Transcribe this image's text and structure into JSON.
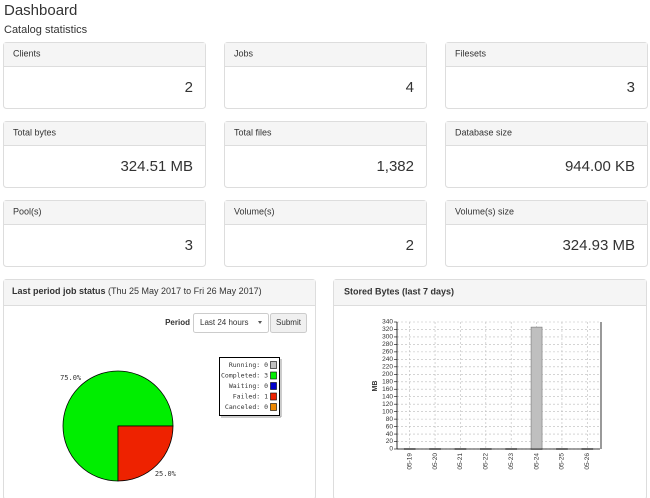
{
  "header": {
    "title": "Dashboard",
    "subtitle": "Catalog statistics"
  },
  "stats": [
    {
      "label": "Clients",
      "value": "2"
    },
    {
      "label": "Jobs",
      "value": "4"
    },
    {
      "label": "Filesets",
      "value": "3"
    },
    {
      "label": "Total bytes",
      "value": "324.51 MB"
    },
    {
      "label": "Total files",
      "value": "1,382"
    },
    {
      "label": "Database size",
      "value": "944.00 KB"
    },
    {
      "label": "Pool(s)",
      "value": "3"
    },
    {
      "label": "Volume(s)",
      "value": "2"
    },
    {
      "label": "Volume(s) size",
      "value": "324.93 MB"
    }
  ],
  "job_status": {
    "title": "Last period job status",
    "range": "(Thu 25 May 2017 to Fri 26 May 2017)",
    "period_label": "Period",
    "period_option": "Last 24 hours",
    "submit": "Submit",
    "chart_data": {
      "type": "pie",
      "categories": [
        "Running:",
        "Completed:",
        "Waiting:",
        "Failed:",
        "Canceled:"
      ],
      "counts": [
        0,
        3,
        0,
        1,
        0
      ],
      "values": [
        0,
        75,
        0,
        25,
        0
      ],
      "value_labels": [
        null,
        "75.0%",
        null,
        "25.0%",
        null
      ],
      "colors": [
        "#c0c0c0",
        "#00ee00",
        "#0000cc",
        "#ee2200",
        "#ee8800"
      ]
    }
  },
  "stored_bytes": {
    "title": "Stored Bytes (last 7 days)",
    "chart_data": {
      "type": "bar",
      "categories": [
        "05-19",
        "05-20",
        "05-21",
        "05-22",
        "05-23",
        "05-24",
        "05-25",
        "05-26"
      ],
      "values": [
        0,
        0,
        0,
        0,
        0,
        325,
        0,
        0
      ],
      "color": "#bfbfbf",
      "ylabel": "MB",
      "ylim": [
        0,
        340
      ],
      "yticks": [
        0,
        20,
        40,
        60,
        80,
        100,
        120,
        140,
        160,
        180,
        200,
        220,
        240,
        260,
        280,
        300,
        320,
        340
      ],
      "grid": true
    }
  }
}
